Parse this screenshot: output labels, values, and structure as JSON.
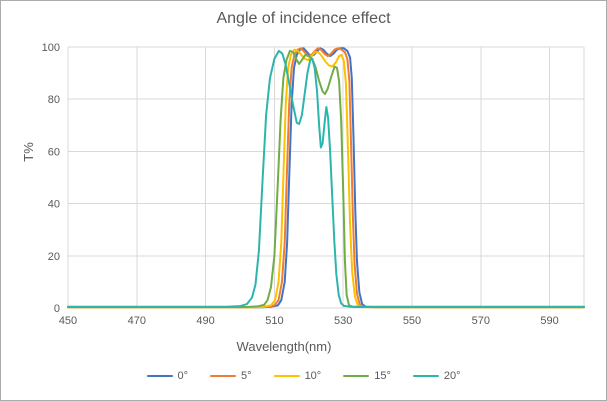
{
  "chart": {
    "title": "Angle of incidence effect",
    "x_axis_title": "Wavelength(nm)",
    "y_axis_title": "T%"
  },
  "styles": {
    "background": "#FFFFFF",
    "frame_border_color": "#ABABAB",
    "grid_color": "#D9D9D9",
    "text_color": "#595959"
  },
  "chart_data": {
    "type": "line",
    "title": "Angle of incidence effect",
    "xlabel": "Wavelength(nm)",
    "ylabel": "T%",
    "xlim": [
      450,
      600
    ],
    "ylim": [
      0,
      100
    ],
    "x_ticks": [
      450,
      470,
      490,
      510,
      530,
      550,
      570,
      590
    ],
    "y_ticks": [
      0,
      20,
      40,
      60,
      80,
      100
    ],
    "grid": true,
    "legend_position": "bottom",
    "series": [
      {
        "name": "0°",
        "color": "#4472C4",
        "points": [
          [
            450,
            0.3
          ],
          [
            500,
            0.3
          ],
          [
            506,
            0.3
          ],
          [
            509,
            0.5
          ],
          [
            511,
            1
          ],
          [
            512,
            3
          ],
          [
            513,
            10
          ],
          [
            513.7,
            25
          ],
          [
            514.3,
            50
          ],
          [
            515,
            78
          ],
          [
            515.7,
            92
          ],
          [
            516.5,
            97
          ],
          [
            517.5,
            99
          ],
          [
            518.5,
            99.5
          ],
          [
            519.5,
            98
          ],
          [
            520.5,
            96.5
          ],
          [
            521.5,
            97
          ],
          [
            522.5,
            98.5
          ],
          [
            523.3,
            99.5
          ],
          [
            524.2,
            99
          ],
          [
            525.2,
            97.5
          ],
          [
            526.2,
            96.5
          ],
          [
            527.2,
            97.5
          ],
          [
            528.2,
            99
          ],
          [
            529.2,
            99.5
          ],
          [
            530.2,
            99.5
          ],
          [
            531.2,
            98.5
          ],
          [
            532,
            96
          ],
          [
            532.5,
            88
          ],
          [
            533,
            65
          ],
          [
            533.5,
            38
          ],
          [
            534,
            18
          ],
          [
            534.7,
            6
          ],
          [
            535.5,
            1.5
          ],
          [
            536.5,
            0.5
          ],
          [
            540,
            0.3
          ],
          [
            600,
            0.3
          ]
        ]
      },
      {
        "name": "5°",
        "color": "#ED7D31",
        "points": [
          [
            450,
            0.3
          ],
          [
            499,
            0.3
          ],
          [
            505,
            0.3
          ],
          [
            508,
            0.5
          ],
          [
            510,
            1
          ],
          [
            511.2,
            3
          ],
          [
            512.2,
            10
          ],
          [
            513,
            25
          ],
          [
            513.6,
            50
          ],
          [
            514.3,
            78
          ],
          [
            515,
            92
          ],
          [
            515.8,
            97
          ],
          [
            516.8,
            99
          ],
          [
            517.8,
            99.5
          ],
          [
            518.8,
            98
          ],
          [
            519.8,
            96.5
          ],
          [
            520.8,
            97
          ],
          [
            521.8,
            98.5
          ],
          [
            522.6,
            99.5
          ],
          [
            523.5,
            99
          ],
          [
            524.5,
            97.5
          ],
          [
            525.5,
            96.5
          ],
          [
            526.5,
            97.5
          ],
          [
            527.5,
            99
          ],
          [
            528.5,
            99.5
          ],
          [
            529.5,
            99
          ],
          [
            530.5,
            98
          ],
          [
            531.2,
            95.5
          ],
          [
            531.8,
            87
          ],
          [
            532.3,
            62
          ],
          [
            532.8,
            36
          ],
          [
            533.3,
            17
          ],
          [
            534,
            5.5
          ],
          [
            534.8,
            1.5
          ],
          [
            535.8,
            0.5
          ],
          [
            539,
            0.3
          ],
          [
            600,
            0.3
          ]
        ]
      },
      {
        "name": "10°",
        "color": "#FFC000",
        "points": [
          [
            450,
            0.3
          ],
          [
            498,
            0.3
          ],
          [
            504,
            0.3
          ],
          [
            507,
            0.5
          ],
          [
            509,
            1
          ],
          [
            510.2,
            3
          ],
          [
            511.2,
            10
          ],
          [
            512,
            25
          ],
          [
            512.6,
            50
          ],
          [
            513.3,
            78
          ],
          [
            514,
            92
          ],
          [
            514.8,
            97
          ],
          [
            515.8,
            99
          ],
          [
            516.8,
            98.5
          ],
          [
            517.8,
            97
          ],
          [
            518.8,
            95.5
          ],
          [
            519.8,
            95
          ],
          [
            520.8,
            96.5
          ],
          [
            521.8,
            98
          ],
          [
            522.8,
            98
          ],
          [
            523.8,
            96.5
          ],
          [
            524.8,
            94.5
          ],
          [
            525.8,
            93
          ],
          [
            526.8,
            92.5
          ],
          [
            527.8,
            94
          ],
          [
            528.8,
            96.5
          ],
          [
            529.5,
            97
          ],
          [
            530.2,
            94.5
          ],
          [
            530.8,
            86
          ],
          [
            531.4,
            60
          ],
          [
            532,
            32
          ],
          [
            532.6,
            14
          ],
          [
            533.4,
            4.5
          ],
          [
            534.2,
            1.2
          ],
          [
            535.5,
            0.4
          ],
          [
            539,
            0.3
          ],
          [
            600,
            0.3
          ]
        ]
      },
      {
        "name": "15°",
        "color": "#70AD47",
        "points": [
          [
            450,
            0.4
          ],
          [
            497,
            0.4
          ],
          [
            502,
            0.4
          ],
          [
            505,
            0.6
          ],
          [
            507,
            1.2
          ],
          [
            508,
            3
          ],
          [
            509,
            8
          ],
          [
            510,
            20
          ],
          [
            511,
            48
          ],
          [
            511.8,
            72
          ],
          [
            512.6,
            88
          ],
          [
            513.5,
            95
          ],
          [
            514.5,
            98.5
          ],
          [
            515.5,
            98
          ],
          [
            516.5,
            95
          ],
          [
            517.2,
            93.5
          ],
          [
            518,
            95
          ],
          [
            519,
            97
          ],
          [
            520,
            96.5
          ],
          [
            521,
            95.5
          ],
          [
            522,
            92
          ],
          [
            523,
            87
          ],
          [
            524,
            83
          ],
          [
            524.7,
            82
          ],
          [
            525.5,
            84
          ],
          [
            526.5,
            88.5
          ],
          [
            527.5,
            92.5
          ],
          [
            528.2,
            92
          ],
          [
            528.8,
            87
          ],
          [
            529.4,
            72
          ],
          [
            530,
            45
          ],
          [
            530.5,
            18
          ],
          [
            531,
            5
          ],
          [
            531.7,
            1
          ],
          [
            533,
            0.4
          ],
          [
            600,
            0.4
          ]
        ]
      },
      {
        "name": "20°",
        "color": "#2CB5AD",
        "points": [
          [
            450,
            0.5
          ],
          [
            496,
            0.5
          ],
          [
            500,
            0.7
          ],
          [
            502,
            1.5
          ],
          [
            503.5,
            4
          ],
          [
            504.5,
            9
          ],
          [
            505.5,
            22
          ],
          [
            506.6,
            50
          ],
          [
            507.6,
            74
          ],
          [
            508.7,
            88
          ],
          [
            510,
            95.5
          ],
          [
            511.3,
            98.5
          ],
          [
            512.3,
            97.5
          ],
          [
            513.3,
            93
          ],
          [
            514.3,
            86
          ],
          [
            515.4,
            78
          ],
          [
            516.5,
            71
          ],
          [
            517.2,
            70.5
          ],
          [
            518,
            74
          ],
          [
            518.8,
            82
          ],
          [
            519.6,
            90
          ],
          [
            520.4,
            95
          ],
          [
            521,
            95.5
          ],
          [
            521.7,
            92
          ],
          [
            522.4,
            83
          ],
          [
            523,
            70
          ],
          [
            523.5,
            61.5
          ],
          [
            524,
            63
          ],
          [
            524.6,
            71
          ],
          [
            525.1,
            77
          ],
          [
            525.6,
            73
          ],
          [
            526.2,
            60
          ],
          [
            526.8,
            43
          ],
          [
            527.4,
            26
          ],
          [
            528,
            13
          ],
          [
            528.7,
            5
          ],
          [
            529.4,
            1.8
          ],
          [
            530.2,
            0.8
          ],
          [
            532,
            0.5
          ],
          [
            600,
            0.5
          ]
        ]
      }
    ]
  }
}
